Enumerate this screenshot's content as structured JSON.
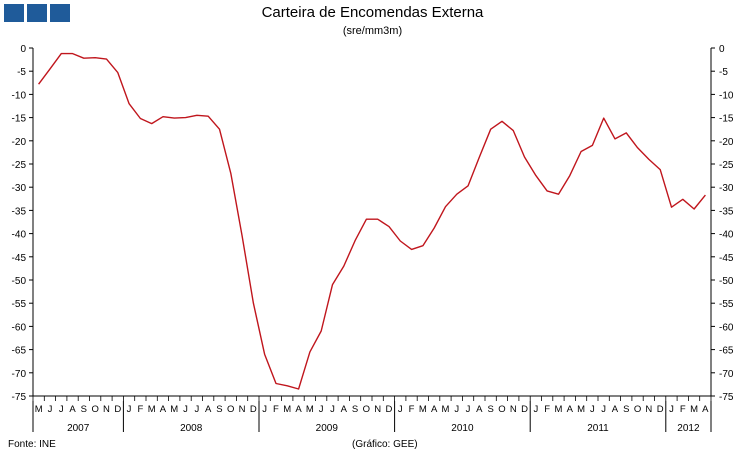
{
  "header": {
    "title": "Carteira de Encomendas  Externa",
    "subtitle": "(sre/mm3m)"
  },
  "footer": {
    "source": "Fonte:  INE",
    "credit": "(Gráfico:  GEE)"
  },
  "colors": {
    "line": "#c0161d",
    "logo": "#1f5b9a",
    "axis": "#000000"
  },
  "chart_data": {
    "type": "line",
    "title": "Carteira de Encomendas  Externa",
    "subtitle": "(sre/mm3m)",
    "ylim": [
      -75,
      0
    ],
    "y_ticks": [
      0,
      -5,
      -10,
      -15,
      -20,
      -25,
      -30,
      -35,
      -40,
      -45,
      -50,
      -55,
      -60,
      -65,
      -70,
      -75
    ],
    "y_tick_labels": [
      "0",
      "-5",
      "-10",
      "-15",
      "-20",
      "-25",
      "-30",
      "-35",
      "-40",
      "-45",
      "-50",
      "-55",
      "-60",
      "-65",
      "-70",
      "-75"
    ],
    "month_labels": [
      "M",
      "J",
      "J",
      "A",
      "S",
      "O",
      "N",
      "D",
      "J",
      "F",
      "M",
      "A",
      "M",
      "J",
      "J",
      "A",
      "S",
      "O",
      "N",
      "D",
      "J",
      "F",
      "M",
      "A",
      "M",
      "J",
      "J",
      "A",
      "S",
      "O",
      "N",
      "D",
      "J",
      "F",
      "M",
      "A",
      "M",
      "J",
      "J",
      "A",
      "S",
      "O",
      "N",
      "D",
      "J",
      "F",
      "M",
      "A",
      "M",
      "J",
      "J",
      "A",
      "S",
      "O",
      "N",
      "D",
      "J",
      "F",
      "M",
      "A"
    ],
    "years": [
      {
        "label": "2007",
        "start": 0,
        "count": 8
      },
      {
        "label": "2008",
        "start": 8,
        "count": 12
      },
      {
        "label": "2009",
        "start": 20,
        "count": 12
      },
      {
        "label": "2010",
        "start": 32,
        "count": 12
      },
      {
        "label": "2011",
        "start": 44,
        "count": 12
      },
      {
        "label": "2012",
        "start": 56,
        "count": 4
      }
    ],
    "grid": false,
    "series": [
      {
        "values": [
          -7.8,
          -4.5,
          -1.2,
          -1.2,
          -2.2,
          -2.1,
          -2.4,
          -5.3,
          -12.0,
          -15.2,
          -16.3,
          -14.8,
          -15.1,
          -15.0,
          -14.5,
          -14.7,
          -17.5,
          -27.0,
          -40.5,
          -55.0,
          -66.0,
          -72.3,
          -72.8,
          -73.5,
          -65.5,
          -61.0,
          -51.0,
          -47.0,
          -41.5,
          -36.9,
          -36.9,
          -38.5,
          -41.6,
          -43.4,
          -42.6,
          -38.8,
          -34.2,
          -31.5,
          -29.7,
          -23.5,
          -17.5,
          -15.8,
          -17.8,
          -23.5,
          -27.5,
          -30.8,
          -31.5,
          -27.5,
          -22.3,
          -21.0,
          -15.1,
          -19.6,
          -18.3,
          -21.5,
          -24.0,
          -26.2,
          -34.3,
          -32.6,
          -34.7,
          -31.7
        ]
      }
    ]
  }
}
